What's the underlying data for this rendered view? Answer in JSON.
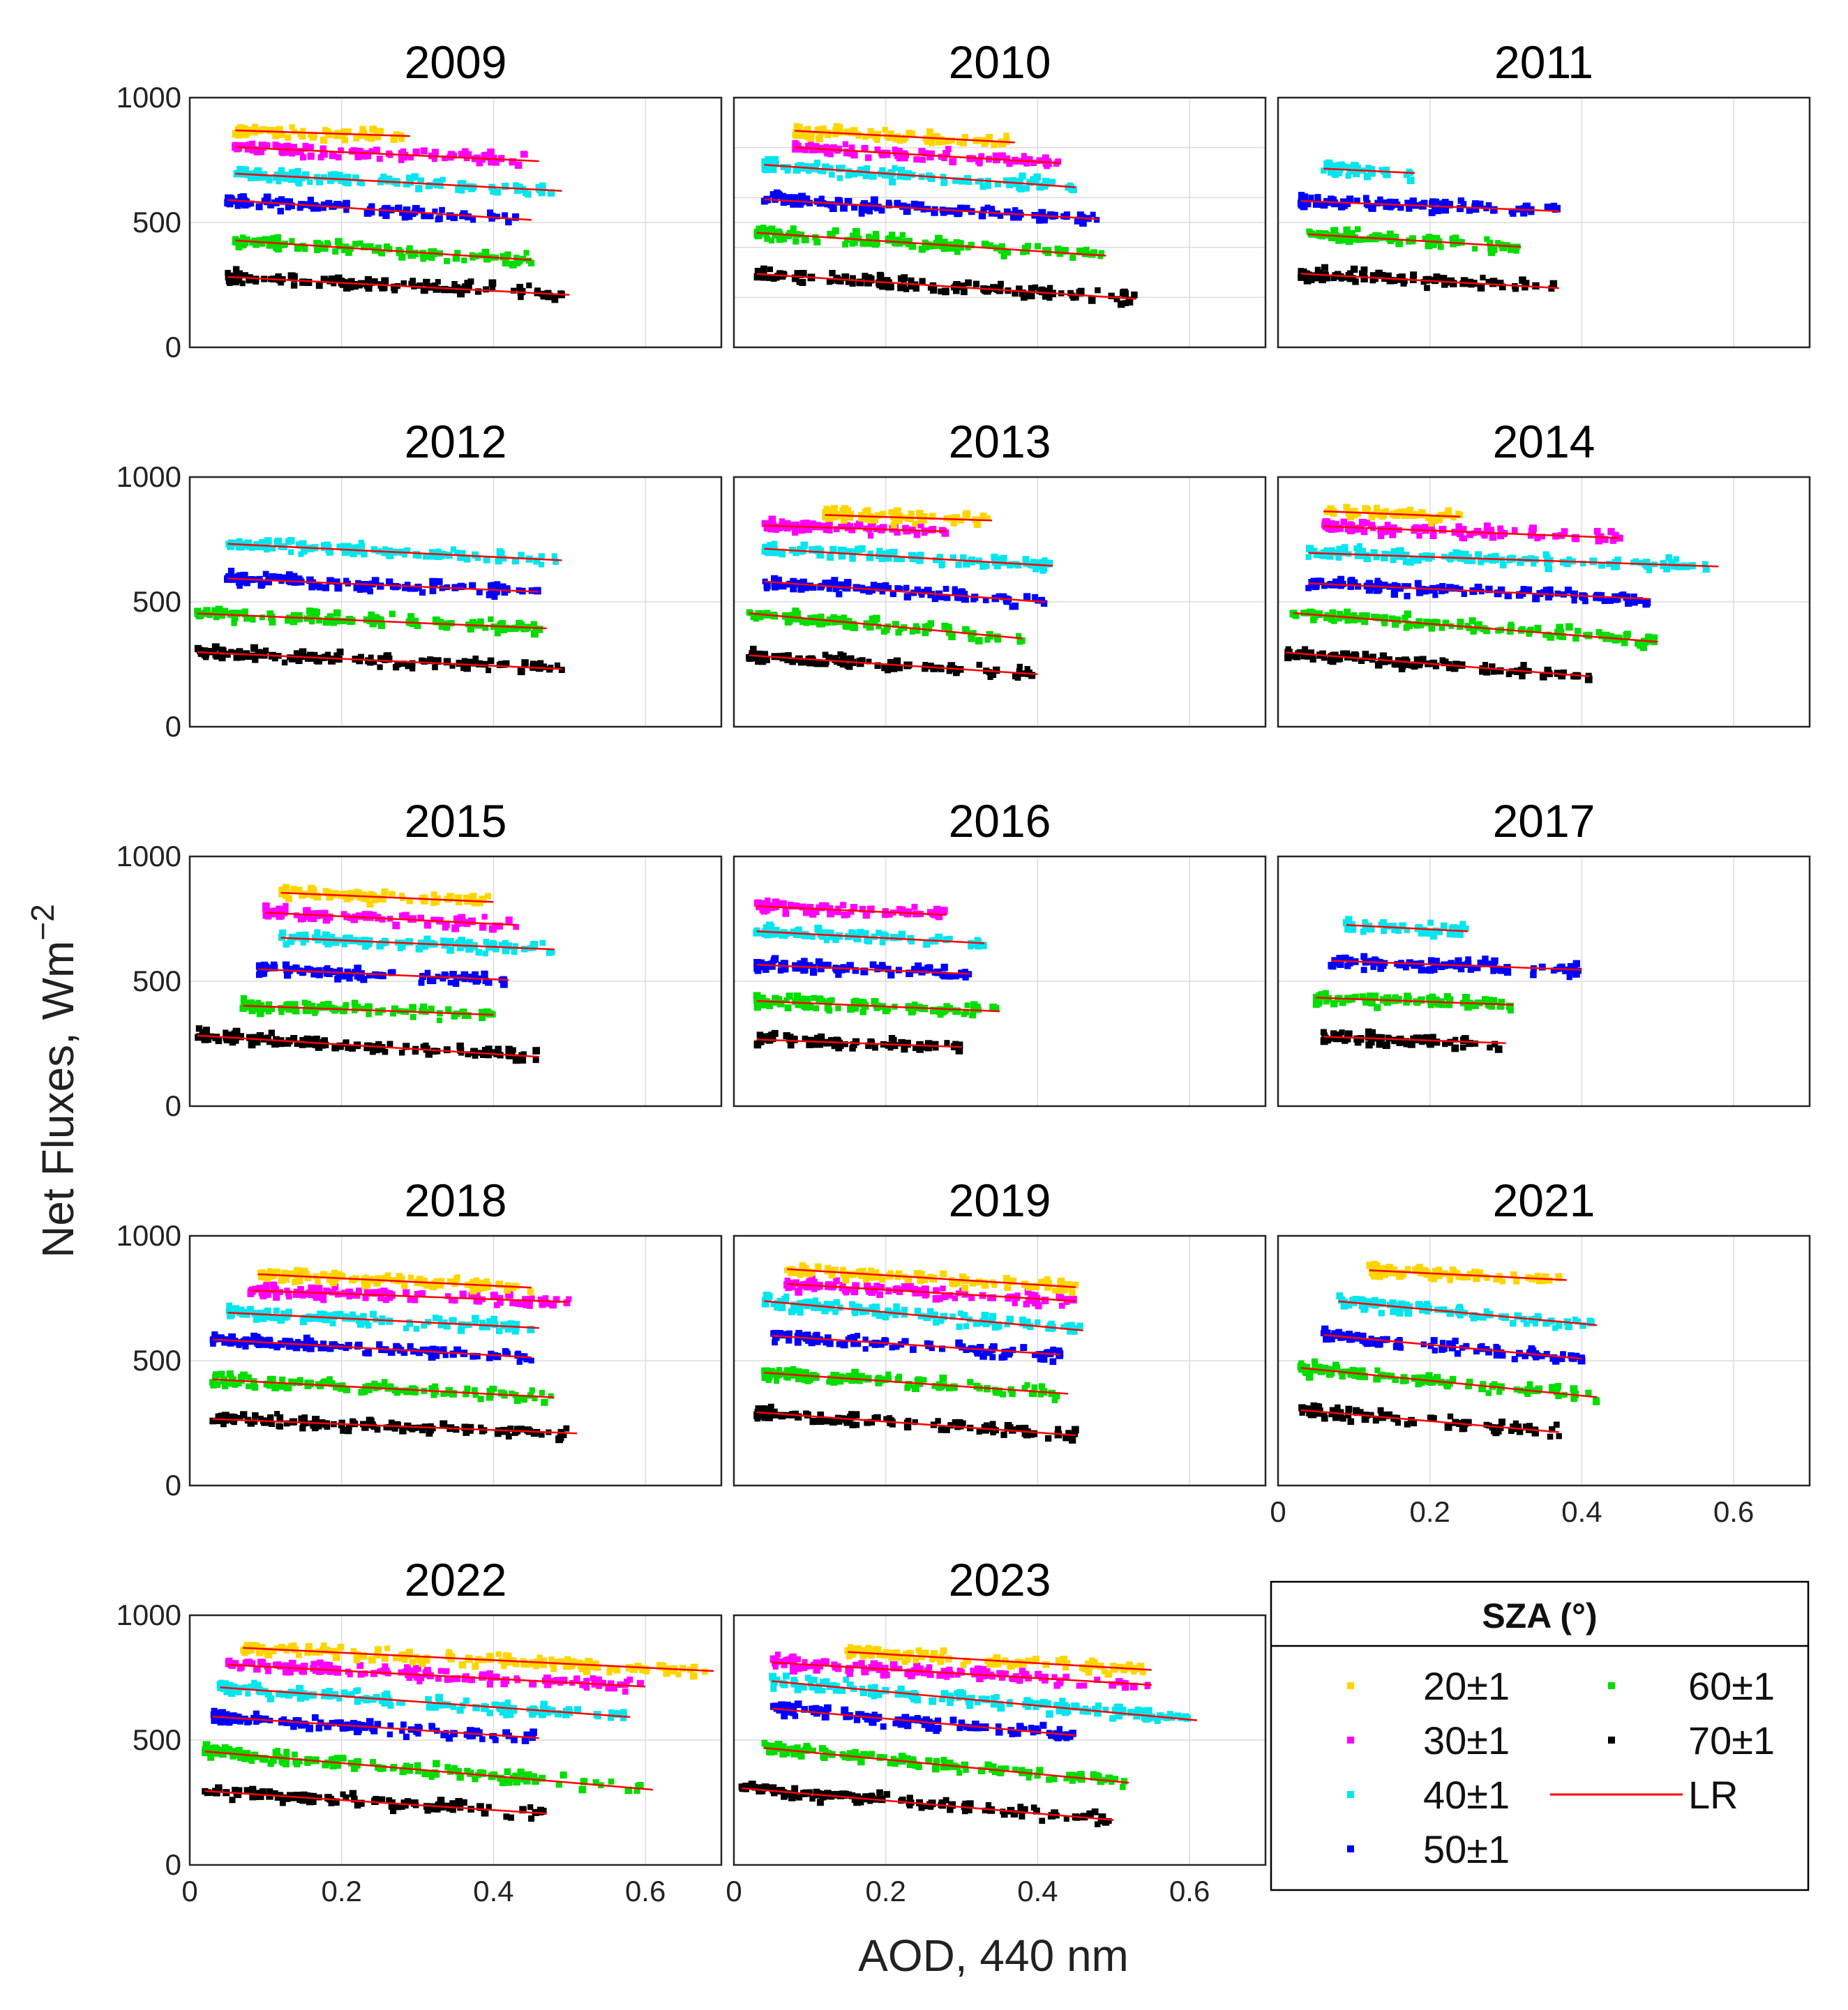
{
  "chart_data": {
    "type": "scatter",
    "xlabel": "AOD, 440 nm",
    "ylabel": "Net Fluxes, Wm",
    "ylabel_exponent": "−2",
    "xlim": [
      0,
      0.7
    ],
    "ylim": [
      0,
      1000
    ],
    "xticks": [
      "0",
      "0.2",
      "0.4",
      "0.6"
    ],
    "yticks": [
      "0",
      "500",
      "1000"
    ],
    "grid": true,
    "legend": {
      "title": "SZA (°)",
      "position": "bottom-right",
      "entries": [
        {
          "key": "20",
          "label": "20±1",
          "color": "#ffd500"
        },
        {
          "key": "30",
          "label": "30±1",
          "color": "#ff00ff"
        },
        {
          "key": "40",
          "label": "40±1",
          "color": "#00e5ee"
        },
        {
          "key": "50",
          "label": "50±1",
          "color": "#0000ff"
        },
        {
          "key": "60",
          "label": "60±1",
          "color": "#00dd00"
        },
        {
          "key": "70",
          "label": "70±1",
          "color": "#000000"
        },
        {
          "key": "LR",
          "label": "LR",
          "color": "#ff0000"
        }
      ]
    },
    "panels": [
      {
        "title": "2009",
        "series": {
          "20": {
            "range": [
              0.06,
              0.29
            ],
            "fit": [
              875,
              -100
            ]
          },
          "30": {
            "range": [
              0.06,
              0.46
            ],
            "fit": [
              810,
              -140
            ]
          },
          "40": {
            "range": [
              0.06,
              0.49
            ],
            "fit": [
              705,
              -160
            ]
          },
          "50": {
            "range": [
              0.05,
              0.45
            ],
            "fit": [
              600,
              -200
            ]
          },
          "60": {
            "range": [
              0.06,
              0.45
            ],
            "fit": [
              440,
              -200
            ]
          },
          "70": {
            "range": [
              0.05,
              0.5
            ],
            "fit": [
              290,
              -160
            ]
          }
        }
      },
      {
        "title": "2010",
        "series": {
          "20": {
            "range": [
              0.08,
              0.37
            ],
            "fit": [
              880,
              -160
            ]
          },
          "30": {
            "range": [
              0.08,
              0.43
            ],
            "fit": [
              815,
              -180
            ]
          },
          "40": {
            "range": [
              0.04,
              0.45
            ],
            "fit": [
              740,
              -220
            ]
          },
          "50": {
            "range": [
              0.04,
              0.48
            ],
            "fit": [
              600,
              -180
            ]
          },
          "60": {
            "range": [
              0.03,
              0.49
            ],
            "fit": [
              465,
              -200
            ]
          },
          "70": {
            "range": [
              0.03,
              0.53
            ],
            "fit": [
              300,
              -200
            ]
          }
        }
      },
      {
        "title": "2011",
        "series": {
          "40": {
            "range": [
              0.06,
              0.18
            ],
            "fit": [
              725,
              -150
            ]
          },
          "50": {
            "range": [
              0.03,
              0.37
            ],
            "fit": [
              590,
              -120
            ]
          },
          "60": {
            "range": [
              0.04,
              0.32
            ],
            "fit": [
              460,
              -180
            ]
          },
          "70": {
            "range": [
              0.03,
              0.37
            ],
            "fit": [
              300,
              -170
            ]
          }
        }
      },
      {
        "title": "2012",
        "series": {
          "40": {
            "range": [
              0.05,
              0.49
            ],
            "fit": [
              740,
              -150
            ]
          },
          "50": {
            "range": [
              0.05,
              0.46
            ],
            "fit": [
              600,
              -130
            ]
          },
          "60": {
            "range": [
              0.01,
              0.47
            ],
            "fit": [
              455,
              -130
            ]
          },
          "70": {
            "range": [
              0.01,
              0.49
            ],
            "fit": [
              300,
              -140
            ]
          }
        }
      },
      {
        "title": "2013",
        "series": {
          "20": {
            "range": [
              0.12,
              0.34
            ],
            "fit": [
              860,
              -100
            ]
          },
          "30": {
            "range": [
              0.04,
              0.28
            ],
            "fit": [
              810,
              -100
            ]
          },
          "40": {
            "range": [
              0.04,
              0.42
            ],
            "fit": [
              720,
              -180
            ]
          },
          "50": {
            "range": [
              0.04,
              0.41
            ],
            "fit": [
              590,
              -220
            ]
          },
          "60": {
            "range": [
              0.02,
              0.38
            ],
            "fit": [
              460,
              -280
            ]
          },
          "70": {
            "range": [
              0.02,
              0.4
            ],
            "fit": [
              290,
              -200
            ]
          }
        }
      },
      {
        "title": "2014",
        "series": {
          "20": {
            "range": [
              0.06,
              0.24
            ],
            "fit": [
              870,
              -120
            ]
          },
          "30": {
            "range": [
              0.06,
              0.45
            ],
            "fit": [
              810,
              -120
            ]
          },
          "40": {
            "range": [
              0.04,
              0.58
            ],
            "fit": [
              700,
              -100
            ]
          },
          "50": {
            "range": [
              0.04,
              0.49
            ],
            "fit": [
              580,
              -140
            ]
          },
          "60": {
            "range": [
              0.02,
              0.5
            ],
            "fit": [
              460,
              -240
            ]
          },
          "70": {
            "range": [
              0.01,
              0.41
            ],
            "fit": [
              300,
              -240
            ]
          }
        }
      },
      {
        "title": "2015",
        "series": {
          "20": {
            "range": [
              0.12,
              0.4
            ],
            "fit": [
              870,
              -130
            ]
          },
          "30": {
            "range": [
              0.1,
              0.43
            ],
            "fit": [
              790,
              -150
            ]
          },
          "40": {
            "range": [
              0.12,
              0.48
            ],
            "fit": [
              690,
              -130
            ]
          },
          "50": {
            "range": [
              0.09,
              0.42
            ],
            "fit": [
              560,
              -130
            ]
          },
          "60": {
            "range": [
              0.07,
              0.4
            ],
            "fit": [
              410,
              -110
            ]
          },
          "70": {
            "range": [
              0.01,
              0.46
            ],
            "fit": [
              285,
              -190
            ]
          }
        }
      },
      {
        "title": "2016",
        "series": {
          "30": {
            "range": [
              0.03,
              0.28
            ],
            "fit": [
              805,
              -140
            ]
          },
          "40": {
            "range": [
              0.03,
              0.33
            ],
            "fit": [
              705,
              -160
            ]
          },
          "50": {
            "range": [
              0.03,
              0.31
            ],
            "fit": [
              570,
              -130
            ]
          },
          "60": {
            "range": [
              0.03,
              0.35
            ],
            "fit": [
              425,
              -130
            ]
          },
          "70": {
            "range": [
              0.03,
              0.3
            ],
            "fit": [
              270,
              -110
            ]
          }
        }
      },
      {
        "title": "2017",
        "series": {
          "40": {
            "range": [
              0.09,
              0.25
            ],
            "fit": [
              740,
              -160
            ]
          },
          "50": {
            "range": [
              0.07,
              0.4
            ],
            "fit": [
              590,
              -110
            ]
          },
          "60": {
            "range": [
              0.05,
              0.31
            ],
            "fit": [
              440,
              -110
            ]
          },
          "70": {
            "range": [
              0.06,
              0.3
            ],
            "fit": [
              285,
              -110
            ]
          }
        }
      },
      {
        "title": "2018",
        "series": {
          "20": {
            "range": [
              0.09,
              0.45
            ],
            "fit": [
              860,
              -150
            ]
          },
          "30": {
            "range": [
              0.08,
              0.5
            ],
            "fit": [
              790,
              -110
            ]
          },
          "40": {
            "range": [
              0.05,
              0.46
            ],
            "fit": [
              700,
              -150
            ]
          },
          "50": {
            "range": [
              0.03,
              0.45
            ],
            "fit": [
              590,
              -170
            ]
          },
          "60": {
            "range": [
              0.03,
              0.48
            ],
            "fit": [
              430,
              -160
            ]
          },
          "70": {
            "range": [
              0.03,
              0.51
            ],
            "fit": [
              270,
              -120
            ]
          }
        }
      },
      {
        "title": "2019",
        "series": {
          "20": {
            "range": [
              0.07,
              0.45
            ],
            "fit": [
              880,
              -190
            ]
          },
          "30": {
            "range": [
              0.07,
              0.45
            ],
            "fit": [
              820,
              -180
            ]
          },
          "40": {
            "range": [
              0.04,
              0.46
            ],
            "fit": [
              750,
              -280
            ]
          },
          "50": {
            "range": [
              0.05,
              0.43
            ],
            "fit": [
              610,
              -200
            ]
          },
          "60": {
            "range": [
              0.04,
              0.44
            ],
            "fit": [
              460,
              -210
            ]
          },
          "70": {
            "range": [
              0.03,
              0.45
            ],
            "fit": [
              300,
              -220
            ]
          }
        }
      },
      {
        "title": "2021",
        "series": {
          "20": {
            "range": [
              0.12,
              0.38
            ],
            "fit": [
              880,
              -150
            ]
          },
          "40": {
            "range": [
              0.08,
              0.42
            ],
            "fit": [
              760,
              -280
            ]
          },
          "50": {
            "range": [
              0.06,
              0.4
            ],
            "fit": [
              620,
              -280
            ]
          },
          "60": {
            "range": [
              0.03,
              0.42
            ],
            "fit": [
              480,
              -300
            ]
          },
          "70": {
            "range": [
              0.03,
              0.37
            ],
            "fit": [
              310,
              -260
            ]
          }
        }
      },
      {
        "title": "2022",
        "series": {
          "20": {
            "range": [
              0.07,
              0.69
            ],
            "fit": [
              880,
              -150
            ]
          },
          "30": {
            "range": [
              0.05,
              0.6
            ],
            "fit": [
              810,
              -160
            ]
          },
          "40": {
            "range": [
              0.04,
              0.58
            ],
            "fit": [
              720,
              -220
            ]
          },
          "50": {
            "range": [
              0.03,
              0.46
            ],
            "fit": [
              600,
              -200
            ]
          },
          "60": {
            "range": [
              0.02,
              0.61
            ],
            "fit": [
              460,
              -260
            ]
          },
          "70": {
            "range": [
              0.02,
              0.47
            ],
            "fit": [
              300,
              -200
            ]
          }
        }
      },
      {
        "title": "2023",
        "series": {
          "20": {
            "range": [
              0.15,
              0.55
            ],
            "fit": [
              880,
              -180
            ]
          },
          "30": {
            "range": [
              0.05,
              0.55
            ],
            "fit": [
              820,
              -180
            ]
          },
          "40": {
            "range": [
              0.05,
              0.61
            ],
            "fit": [
              750,
              -280
            ]
          },
          "50": {
            "range": [
              0.05,
              0.45
            ],
            "fit": [
              640,
              -270
            ]
          },
          "60": {
            "range": [
              0.04,
              0.52
            ],
            "fit": [
              480,
              -290
            ]
          },
          "70": {
            "range": [
              0.01,
              0.5
            ],
            "fit": [
              310,
              -260
            ]
          }
        }
      }
    ]
  }
}
